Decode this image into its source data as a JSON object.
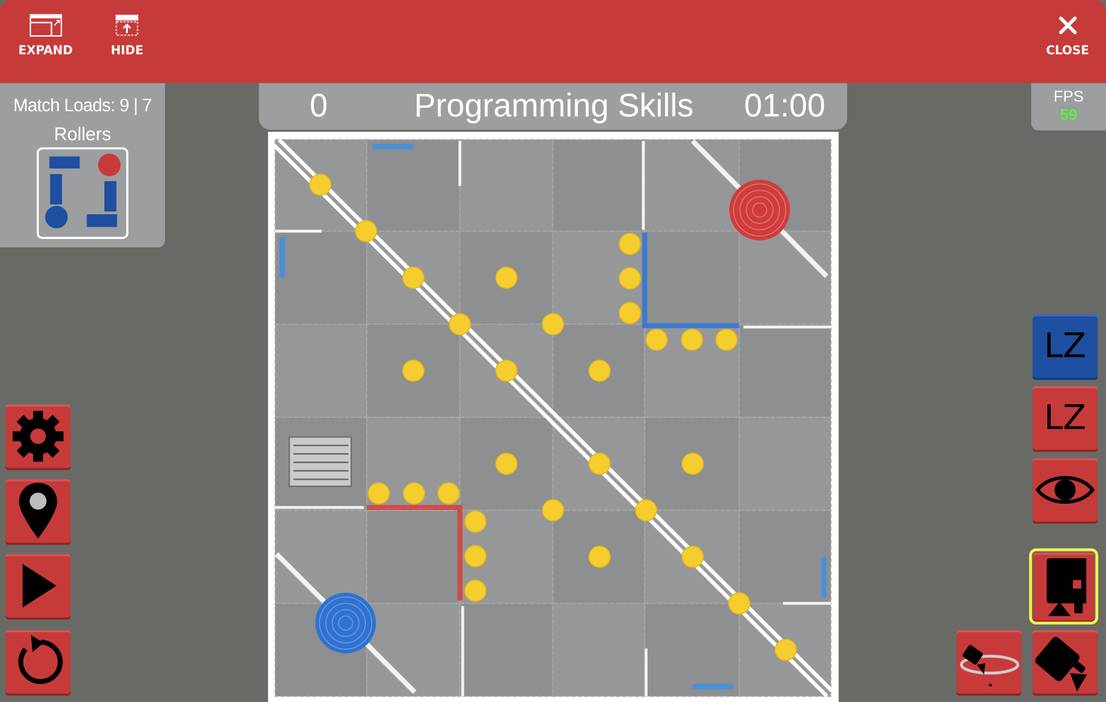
{
  "toolbar": {
    "expand_label": "EXPAND",
    "hide_label": "HIDE",
    "close_label": "CLOSE"
  },
  "status": {
    "match_loads_label": "Match Loads: 9 | 7",
    "rollers_label": "Rollers"
  },
  "scoreboard": {
    "score": "0",
    "mode": "Programming Skills",
    "timer": "01:00"
  },
  "fps": {
    "label": "FPS",
    "value": "59"
  },
  "right_buttons": {
    "lz_blue": "LZ",
    "lz_red": "LZ"
  },
  "colors": {
    "header": "#c73a3a",
    "panel": "#9d9ea0",
    "background": "#686a66",
    "blue": "#1e4fa0",
    "red": "#c73a3a",
    "disc": "#f5cd2e",
    "selected_outline": "#f7f34a",
    "fps_value": "#5ef03c"
  },
  "icons": {
    "left": [
      "gear-icon",
      "location-pin-icon",
      "play-icon",
      "reset-icon"
    ],
    "right": [
      "eye-icon",
      "robot-camera-icon",
      "orbit-camera-icon",
      "follow-camera-icon"
    ]
  }
}
